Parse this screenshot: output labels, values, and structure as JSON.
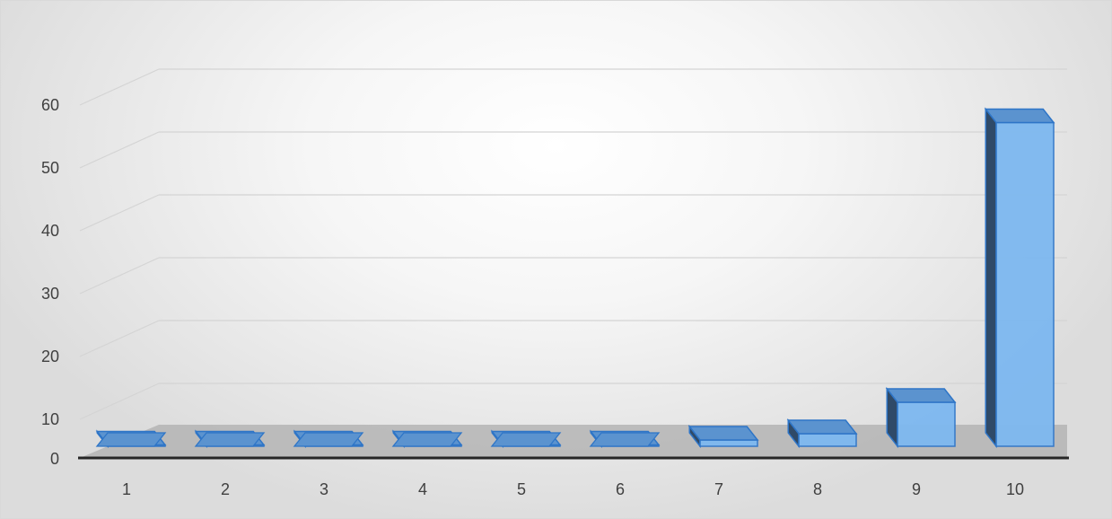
{
  "chart_data": {
    "type": "bar",
    "style": "3d-column",
    "categories": [
      "1",
      "2",
      "3",
      "4",
      "5",
      "6",
      "7",
      "8",
      "9",
      "10"
    ],
    "values": [
      0,
      0,
      0,
      0,
      0,
      0,
      1,
      2,
      7,
      51.5
    ],
    "title": "",
    "xlabel": "",
    "ylabel": "",
    "ylim": [
      0,
      60
    ],
    "yticks": [
      "0",
      "10",
      "20",
      "30",
      "40",
      "50",
      "60"
    ],
    "grid": true,
    "legend": "none",
    "colors": {
      "bar_front": "#7db8f0",
      "bar_side": "#2f4a68",
      "bar_top": "#5b93cf",
      "bar_edge": "#2e75c7",
      "floor": "#b4b4b4",
      "axis": "#262626",
      "grid": "#d4d4d4"
    }
  }
}
